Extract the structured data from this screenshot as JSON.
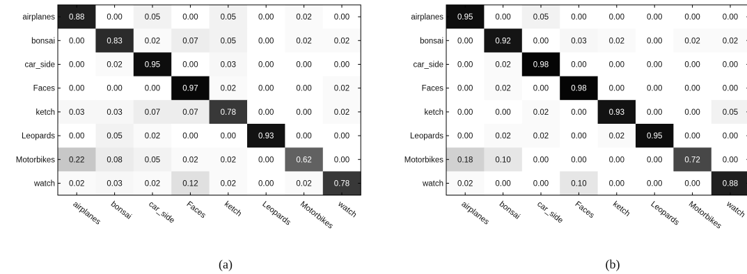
{
  "chart_data": [
    {
      "type": "heatmap",
      "caption": "(a)",
      "rows": [
        "airplanes",
        "bonsai",
        "car_side",
        "Faces",
        "ketch",
        "Leopards",
        "Motorbikes",
        "watch"
      ],
      "columns": [
        "airplanes",
        "bonsai",
        "car_side",
        "Faces",
        "ketch",
        "Leopards",
        "Motorbikes",
        "watch"
      ],
      "values": [
        [
          0.88,
          0.0,
          0.05,
          0.0,
          0.05,
          0.0,
          0.02,
          0.0
        ],
        [
          0.0,
          0.83,
          0.02,
          0.07,
          0.05,
          0.0,
          0.02,
          0.02
        ],
        [
          0.0,
          0.02,
          0.95,
          0.0,
          0.03,
          0.0,
          0.0,
          0.0
        ],
        [
          0.0,
          0.0,
          0.0,
          0.97,
          0.02,
          0.0,
          0.0,
          0.02
        ],
        [
          0.03,
          0.03,
          0.07,
          0.07,
          0.78,
          0.0,
          0.0,
          0.02
        ],
        [
          0.0,
          0.05,
          0.02,
          0.0,
          0.0,
          0.93,
          0.0,
          0.0
        ],
        [
          0.22,
          0.08,
          0.05,
          0.02,
          0.02,
          0.0,
          0.62,
          0.0
        ],
        [
          0.02,
          0.03,
          0.02,
          0.12,
          0.02,
          0.0,
          0.02,
          0.78
        ]
      ],
      "value_range": [
        0,
        1
      ],
      "colormap": "grayscale (white=0, black=1)"
    },
    {
      "type": "heatmap",
      "caption": "(b)",
      "rows": [
        "airplanes",
        "bonsai",
        "car_side",
        "Faces",
        "ketch",
        "Leopards",
        "Motorbikes",
        "watch"
      ],
      "columns": [
        "airplanes",
        "bonsai",
        "car_side",
        "Faces",
        "ketch",
        "Leopards",
        "Motorbikes",
        "watch"
      ],
      "values": [
        [
          0.95,
          0.0,
          0.05,
          0.0,
          0.0,
          0.0,
          0.0,
          0.0
        ],
        [
          0.0,
          0.92,
          0.0,
          0.03,
          0.02,
          0.0,
          0.02,
          0.02
        ],
        [
          0.0,
          0.02,
          0.98,
          0.0,
          0.0,
          0.0,
          0.0,
          0.0
        ],
        [
          0.0,
          0.02,
          0.0,
          0.98,
          0.0,
          0.0,
          0.0,
          0.0
        ],
        [
          0.0,
          0.0,
          0.02,
          0.0,
          0.93,
          0.0,
          0.0,
          0.05
        ],
        [
          0.0,
          0.02,
          0.02,
          0.0,
          0.02,
          0.95,
          0.0,
          0.0
        ],
        [
          0.18,
          0.1,
          0.0,
          0.0,
          0.0,
          0.0,
          0.72,
          0.0
        ],
        [
          0.02,
          0.0,
          0.0,
          0.1,
          0.0,
          0.0,
          0.0,
          0.88
        ]
      ],
      "value_range": [
        0,
        1
      ],
      "colormap": "grayscale (white=0, black=1)"
    }
  ]
}
